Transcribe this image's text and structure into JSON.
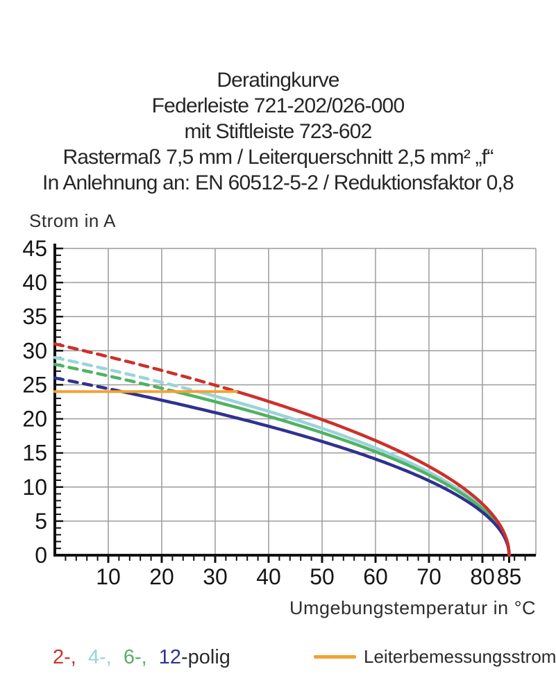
{
  "header": {
    "lines": [
      "Deratingkurve",
      "Federleiste 721-202/026-000",
      "mit Stiftleiste 723-602",
      "Rastermaß 7,5 mm / Leiterquerschnitt 2,5 mm² „f“",
      "In Anlehnung an: EN 60512-5-2 / Reduktionsfaktor 0,8"
    ]
  },
  "chart_data": {
    "type": "line",
    "title": "Deratingkurve",
    "ylabel": "Strom in A",
    "xlabel": "Umgebungstemperatur in °C",
    "grid": true,
    "legend_position": "bottom",
    "x_axis": {
      "min": 0,
      "max": 90,
      "labeled_ticks": [
        10,
        20,
        30,
        40,
        50,
        60,
        70,
        80,
        85
      ],
      "minor_tick_step": 2,
      "gridlines": [
        10,
        20,
        30,
        40,
        50,
        60,
        70,
        80,
        90
      ]
    },
    "y_axis": {
      "min": 0,
      "max": 45,
      "labeled_ticks": [
        0,
        5,
        10,
        15,
        20,
        25,
        30,
        35,
        40,
        45
      ],
      "minor_tick_step": 1,
      "gridlines": [
        5,
        10,
        15,
        20,
        25,
        30,
        35,
        40,
        45
      ]
    },
    "model": {
      "formula": "I(T) = I0 · sqrt(1 - T/Tmax), dashed above rated current cap",
      "tmax": 85,
      "cap": 24
    },
    "x_samples": [
      0,
      10,
      20,
      30,
      40,
      50,
      60,
      70,
      80,
      85
    ],
    "series": [
      {
        "name": "2-polig",
        "color": "#cb312a",
        "i0": 31,
        "values": [
          31.0,
          29.1,
          27.1,
          24.9,
          22.6,
          19.9,
          16.8,
          13.0,
          7.5,
          0
        ]
      },
      {
        "name": "4-polig",
        "color": "#9bd3da",
        "i0": 29,
        "values": [
          29.0,
          27.2,
          25.4,
          23.3,
          21.1,
          18.6,
          15.7,
          12.2,
          7.0,
          0
        ]
      },
      {
        "name": "6-polig",
        "color": "#51b264",
        "i0": 28,
        "values": [
          28.0,
          26.3,
          24.5,
          22.5,
          20.4,
          18.0,
          15.2,
          11.8,
          6.8,
          0
        ]
      },
      {
        "name": "12-polig",
        "color": "#2f3190",
        "i0": 26,
        "values": [
          26.0,
          24.4,
          22.7,
          20.9,
          18.9,
          16.7,
          14.1,
          10.9,
          6.3,
          0
        ]
      }
    ],
    "rated_line": {
      "label": "Leiterbemessungsstrom",
      "value": 24,
      "x_start": 0,
      "x_end": 34,
      "color": "#f2a233"
    },
    "colors": {
      "grid": "#9b9b9b",
      "axis": "#111111",
      "tick_label": "#151515"
    }
  },
  "legend": {
    "poles": [
      {
        "label": "2-,",
        "color": "#cb312a"
      },
      {
        "label": "4-,",
        "color": "#9bd3da"
      },
      {
        "label": "6-,",
        "color": "#51b264"
      },
      {
        "label": "12",
        "color": "#2f3190"
      }
    ],
    "suffix": "-polig",
    "rated": {
      "label": "Leiterbemessungsstrom",
      "color": "#f2a233"
    }
  }
}
